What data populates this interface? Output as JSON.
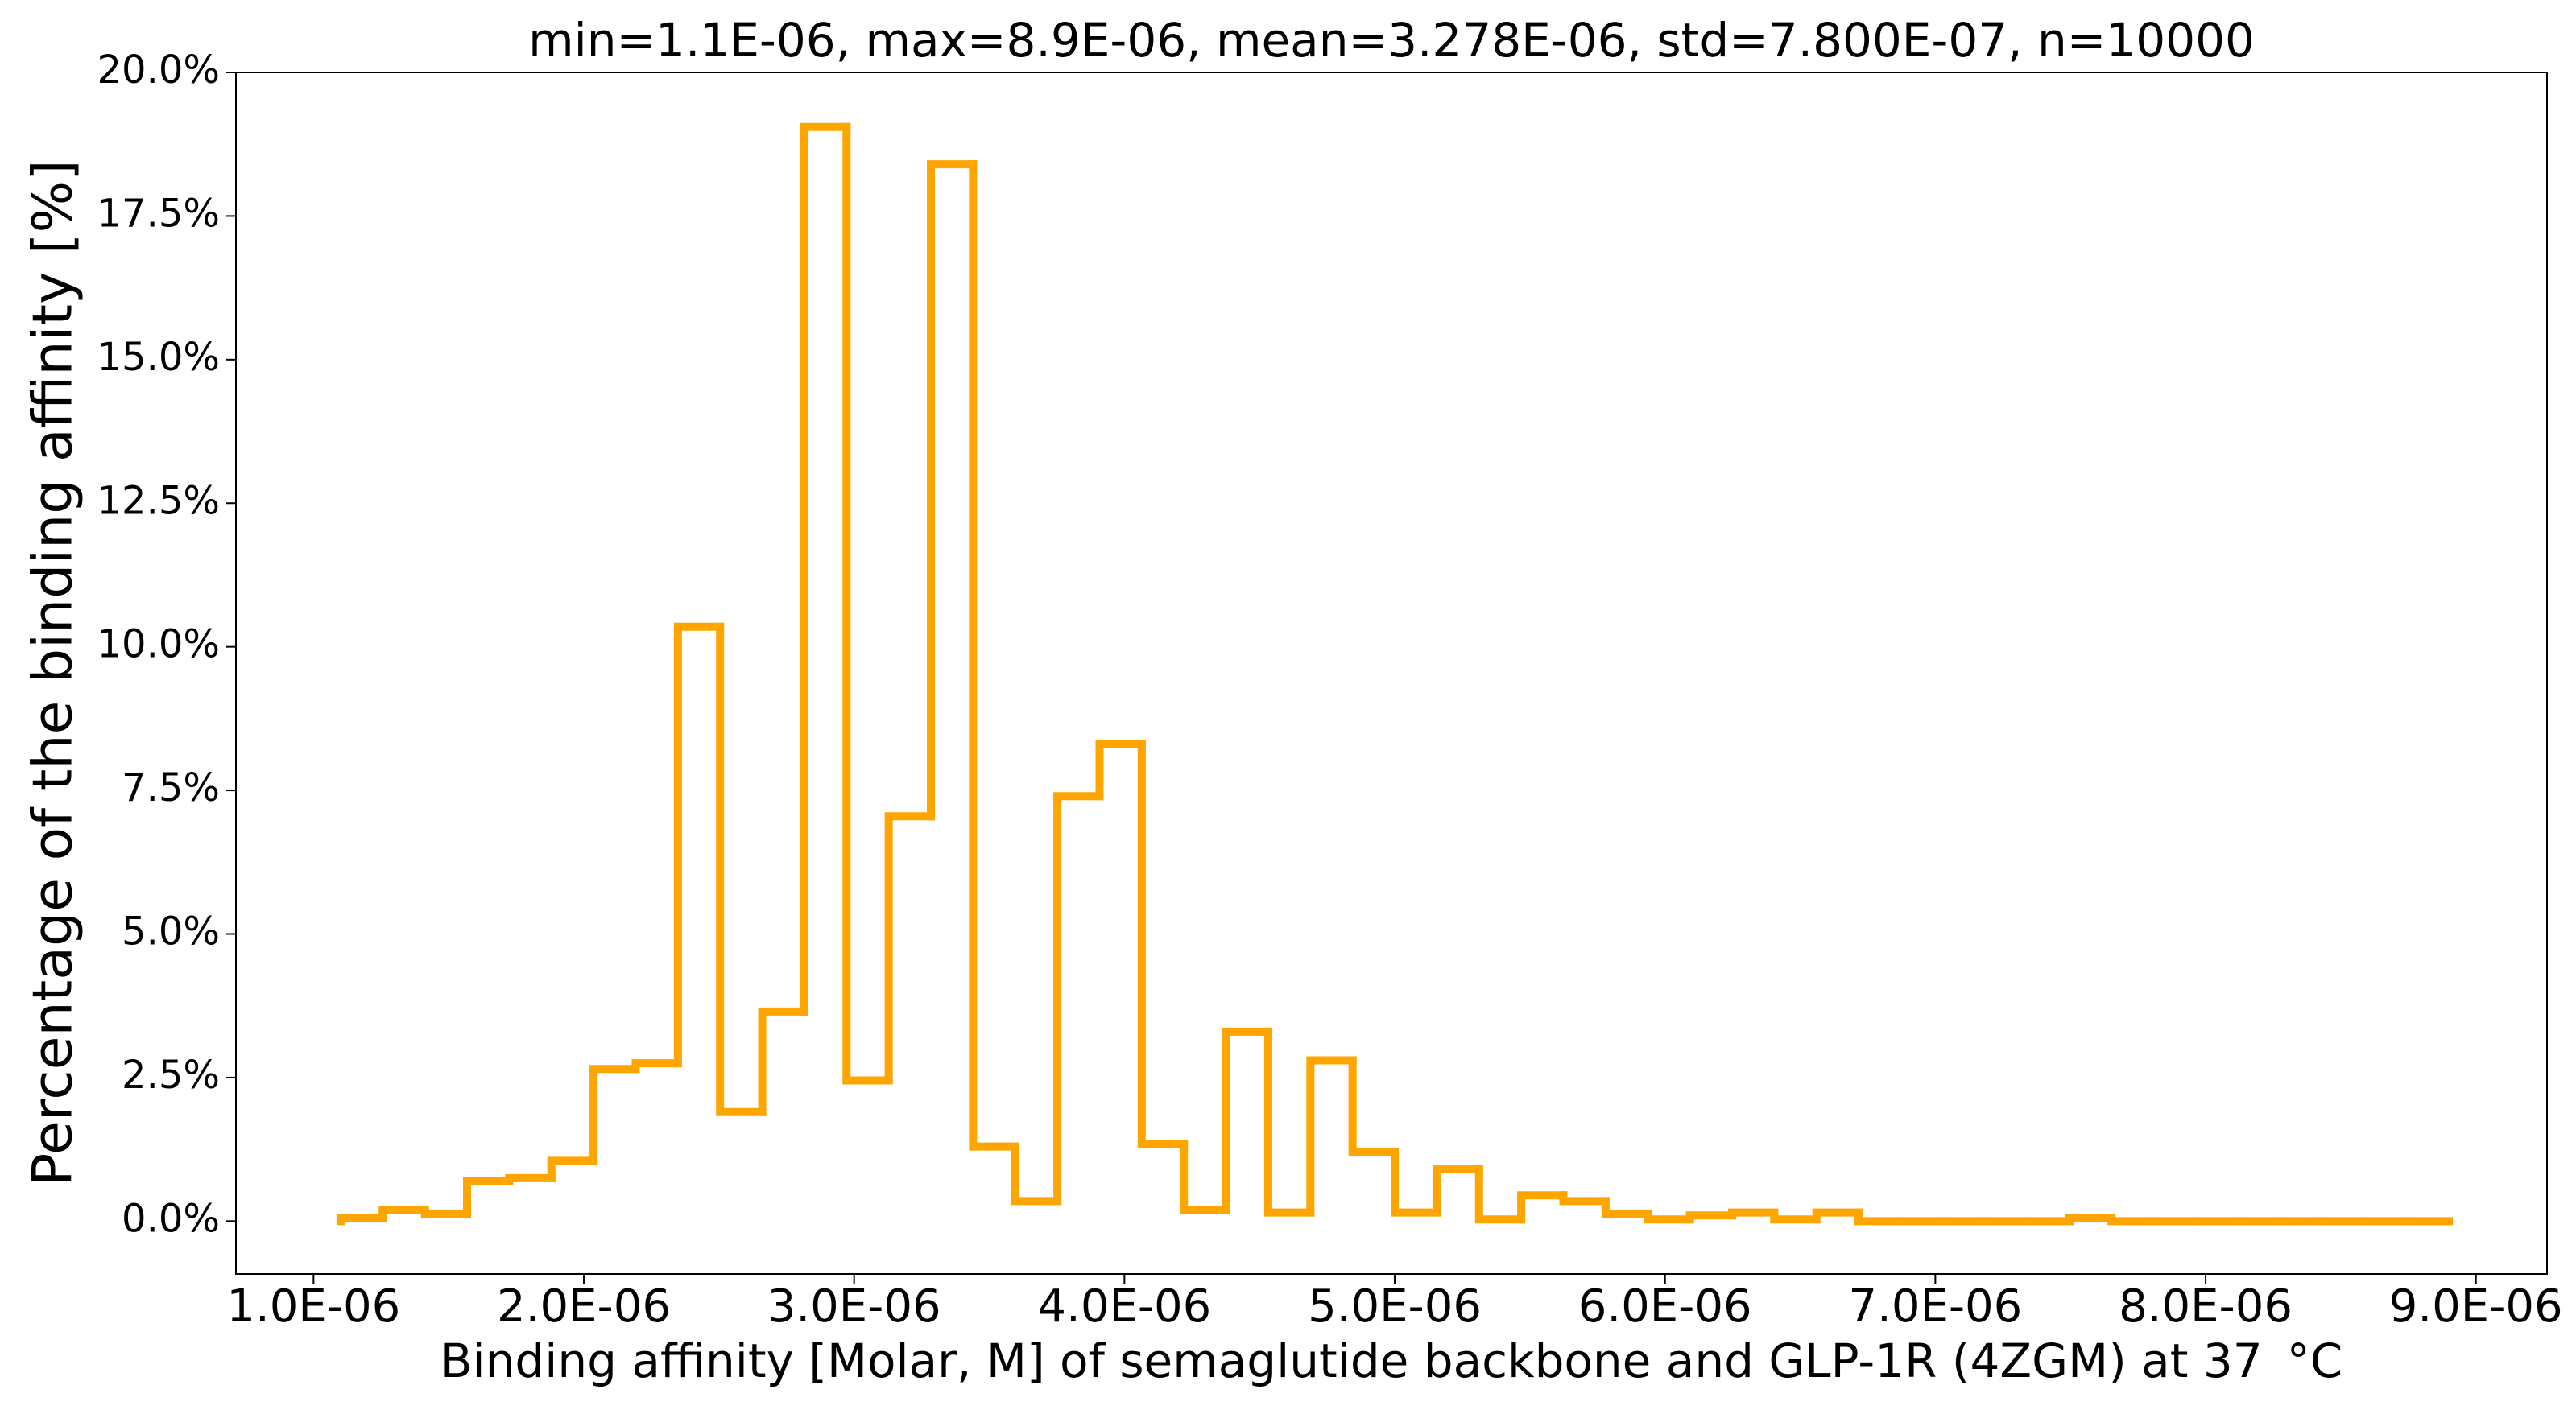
{
  "chart_data": {
    "type": "histogram",
    "title": "min=1.1E-06, max=8.9E-06, mean=3.278E-06, std=7.800E-07, n=10000",
    "x_label": "Binding affinity [Molar, M] of semaglutide backbone and GLP-1R (4ZGM) at 37 $^\\circ$C",
    "y_label": "Percentage of the binding affinity [%]",
    "color": "#ffa500",
    "bins": [
      1.1e-06,
      1.256e-06,
      1.412e-06,
      1.568e-06,
      1.724e-06,
      1.88e-06,
      2.036e-06,
      2.192e-06,
      2.348e-06,
      2.504e-06,
      2.66e-06,
      2.816e-06,
      2.972e-06,
      3.128e-06,
      3.284e-06,
      3.44e-06,
      3.596e-06,
      3.752e-06,
      3.908e-06,
      4.064e-06,
      4.22e-06,
      4.376e-06,
      4.532e-06,
      4.688e-06,
      4.844e-06,
      5e-06,
      5.156e-06,
      5.312e-06,
      5.468e-06,
      5.624e-06,
      5.78e-06,
      5.936e-06,
      6.092e-06,
      6.248e-06,
      6.404e-06,
      6.56e-06,
      6.716e-06,
      6.872e-06,
      7.028e-06,
      7.184e-06,
      7.34e-06,
      7.496e-06,
      7.652e-06,
      7.808e-06,
      7.964e-06,
      8.12e-06,
      8.276e-06,
      8.432e-06,
      8.588e-06,
      8.744e-06,
      8.9e-06
    ],
    "values": [
      0.05,
      0.2,
      0.12,
      0.7,
      0.75,
      1.05,
      2.65,
      2.75,
      10.35,
      1.9,
      3.65,
      19.05,
      2.45,
      7.05,
      18.4,
      1.3,
      0.35,
      7.4,
      8.3,
      1.35,
      0.2,
      3.3,
      0.15,
      2.8,
      1.2,
      0.15,
      0.9,
      0.03,
      0.45,
      0.35,
      0.12,
      0.03,
      0.1,
      0.15,
      0.03,
      0.15,
      0,
      0,
      0,
      0,
      0,
      0.05,
      0,
      0,
      0,
      0,
      0,
      0,
      0,
      0
    ],
    "xlim": [
      7.13e-07,
      9.263e-06
    ],
    "ylim": [
      -0.92,
      20
    ],
    "xticks": [
      {
        "value": 1e-06,
        "label": "1.0E-06"
      },
      {
        "value": 2e-06,
        "label": "2.0E-06"
      },
      {
        "value": 3e-06,
        "label": "3.0E-06"
      },
      {
        "value": 4e-06,
        "label": "4.0E-06"
      },
      {
        "value": 5e-06,
        "label": "5.0E-06"
      },
      {
        "value": 6e-06,
        "label": "6.0E-06"
      },
      {
        "value": 7e-06,
        "label": "7.0E-06"
      },
      {
        "value": 8e-06,
        "label": "8.0E-06"
      },
      {
        "value": 9e-06,
        "label": "9.0E-06"
      }
    ],
    "yticks": [
      {
        "value": 0,
        "label": "0.0%"
      },
      {
        "value": 2.5,
        "label": "2.5%"
      },
      {
        "value": 5,
        "label": "5.0%"
      },
      {
        "value": 7.5,
        "label": "7.5%"
      },
      {
        "value": 10,
        "label": "10.0%"
      },
      {
        "value": 12.5,
        "label": "12.5%"
      },
      {
        "value": 15,
        "label": "15.0%"
      },
      {
        "value": 17.5,
        "label": "17.5%"
      },
      {
        "value": 20,
        "label": "20.0%"
      }
    ],
    "grid": false
  }
}
